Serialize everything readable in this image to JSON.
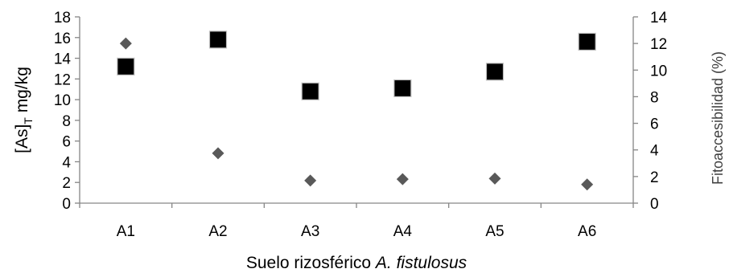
{
  "chart_data": {
    "type": "scatter",
    "categories": [
      "A1",
      "A2",
      "A3",
      "A4",
      "A5",
      "A6"
    ],
    "xlabel": {
      "prefix": "Suelo rizosférico ",
      "italic": "A. fistulosus"
    },
    "ylabel_left": {
      "main": "[As]",
      "subscript": "T",
      "suffix": " mg/kg"
    },
    "ylabel_right": "Fitoaccesibilidad (%)",
    "ylim_left": [
      0,
      18
    ],
    "yticks_left": [
      0,
      2,
      4,
      6,
      8,
      10,
      12,
      14,
      16,
      18
    ],
    "ylim_right": [
      0,
      14
    ],
    "yticks_right": [
      0,
      2,
      4,
      6,
      8,
      10,
      12,
      14
    ],
    "grid": false,
    "series": [
      {
        "axis": "left",
        "marker": "square",
        "color": "#000000",
        "values": [
          13.2,
          15.8,
          10.8,
          11.1,
          12.7,
          15.6
        ]
      },
      {
        "axis": "right",
        "marker": "diamond",
        "color": "#595959",
        "values": [
          12.0,
          3.75,
          1.7,
          1.8,
          1.85,
          1.4
        ]
      }
    ]
  }
}
